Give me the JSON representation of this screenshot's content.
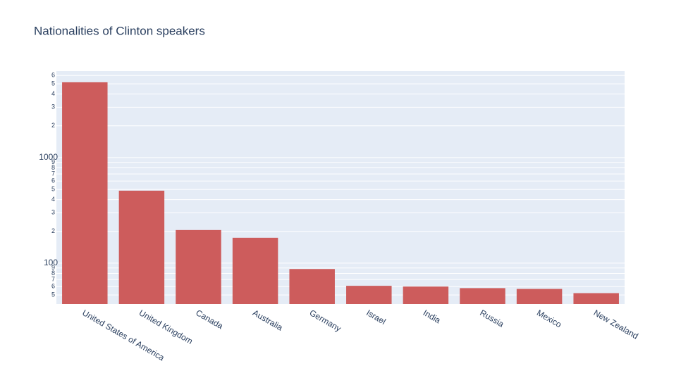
{
  "chart_data": {
    "type": "bar",
    "title": "Nationalities of Clinton speakers",
    "categories": [
      "United States of America",
      "United Kingdom",
      "Canada",
      "Australia",
      "Germany",
      "Israel",
      "India",
      "Russia",
      "Mexico",
      "New Zealand"
    ],
    "values": [
      5170,
      486,
      206,
      174,
      88,
      61,
      60,
      58,
      57,
      52
    ],
    "color": "#cd5c5c",
    "log_y": true,
    "ylim": [
      41,
      6600
    ],
    "yticks": [
      {
        "value": 50,
        "label": "5"
      },
      {
        "value": 60,
        "label": "6"
      },
      {
        "value": 70,
        "label": "7"
      },
      {
        "value": 80,
        "label": "8"
      },
      {
        "value": 90,
        "label": "9"
      },
      100,
      {
        "value": 200,
        "label": "2"
      },
      {
        "value": 300,
        "label": "3"
      },
      {
        "value": 400,
        "label": "4"
      },
      {
        "value": 500,
        "label": "5"
      },
      {
        "value": 600,
        "label": "6"
      },
      {
        "value": 700,
        "label": "7"
      },
      {
        "value": 800,
        "label": "8"
      },
      {
        "value": 900,
        "label": "9"
      },
      1000,
      {
        "value": 2000,
        "label": "2"
      },
      {
        "value": 3000,
        "label": "3"
      },
      {
        "value": 4000,
        "label": "4"
      },
      {
        "value": 5000,
        "label": "5"
      },
      {
        "value": 6000,
        "label": "6"
      }
    ],
    "grid": true
  }
}
